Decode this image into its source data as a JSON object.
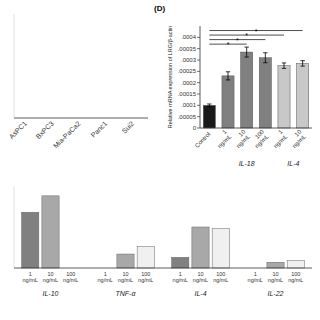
{
  "chart_data": [
    {
      "type": "bar",
      "categories": [
        "AsPC1",
        "BxPC3",
        "Mia-PaCa2",
        "Panc1",
        "Sui2"
      ],
      "values": [
        0.0,
        0.0,
        0.0,
        0.0,
        0.0
      ],
      "color": "#b0b0b0",
      "ylim": [
        0,
        1
      ],
      "tick_labels": "x"
    },
    {
      "type": "bar",
      "categories": [
        "IL-10",
        "TNF-α",
        "IL-4",
        "IL-22"
      ],
      "series": [
        {
          "name": "1\nng/mL",
          "color": "#808080",
          "values": [
            0.68,
            0.0,
            0.13,
            0.0
          ]
        },
        {
          "name": "10\nng/mL",
          "color": "#a8a8a8",
          "values": [
            0.88,
            0.17,
            0.5,
            0.07
          ]
        },
        {
          "name": "100\nng/mL",
          "color": "#f0f0f0",
          "values": [
            0.0,
            0.26,
            0.48,
            0.09
          ]
        }
      ],
      "ylim": [
        0,
        1.0
      ],
      "tick_labels": "x"
    },
    {
      "type": "bar",
      "title": "(D)",
      "categories": [
        "Control",
        "1\nng/mL",
        "10\nng/mL",
        "100\nng/mL",
        "1\nng/mL",
        "10\nng/mL"
      ],
      "values": [
        0.0001,
        0.00023,
        0.000335,
        0.00031,
        0.000275,
        0.000285
      ],
      "errors": [
        6e-06,
        1.8e-05,
        2.2e-05,
        2.2e-05,
        1.2e-05,
        1.2e-05
      ],
      "colors": [
        "#1a1a1a",
        "#808080",
        "#808080",
        "#808080",
        "#c8c8c8",
        "#c8c8c8"
      ],
      "ylabel": "Relative mRNA expression of LRG/β-actin",
      "ylim": [
        0,
        0.00045
      ],
      "yticks": [
        0,
        {
          "value": 5e-05,
          "label": ".00005"
        },
        {
          "value": 0.0001,
          "label": ".0001"
        },
        {
          "value": 0.00015,
          "label": ".00015"
        },
        {
          "value": 0.0002,
          "label": ".0002"
        },
        {
          "value": 0.00025,
          "label": ".00025"
        },
        {
          "value": 0.0003,
          "label": ".0003"
        },
        {
          "value": 0.00035,
          "label": ".00035"
        },
        {
          "value": 0.0004,
          "label": ".0004"
        }
      ],
      "annotations": [
        {
          "text": "IL-18",
          "x": 2.0
        },
        {
          "text": "IL-4",
          "x": 4.5
        },
        {
          "text": "*",
          "x1": 0,
          "x2": 2,
          "y": 0.00037
        },
        {
          "text": "*",
          "x1": 0,
          "x2": 3,
          "y": 0.00039
        },
        {
          "text": "*",
          "x1": 0,
          "x2": 4,
          "y": 0.00041
        },
        {
          "text": "*",
          "x1": 0,
          "x2": 5,
          "y": 0.00043
        }
      ]
    }
  ]
}
